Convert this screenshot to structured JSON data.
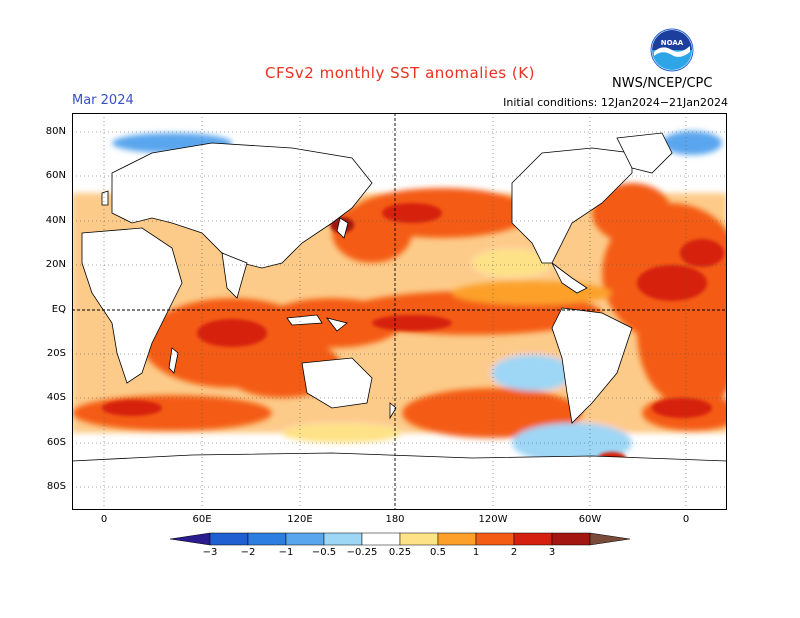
{
  "title": "CFSv2 monthly SST anomalies (K)",
  "month": "Mar 2024",
  "initial_conditions": "Initial conditions: 12Jan2024−21Jan2024",
  "agency": "NWS/NCEP/CPC",
  "logo_text": "NOAA",
  "lat_labels": [
    "80N",
    "60N",
    "40N",
    "20N",
    "EQ",
    "20S",
    "40S",
    "60S",
    "80S"
  ],
  "lon_labels": [
    "0",
    "60E",
    "120E",
    "180",
    "120W",
    "60W",
    "0"
  ],
  "colorbar": {
    "tick_labels": [
      "−3",
      "−2",
      "−1",
      "−0.5",
      "−0.25",
      "0.25",
      "0.5",
      "1",
      "2",
      "3"
    ],
    "colors": [
      "#2a1c8f",
      "#1f5fd1",
      "#2c7fe0",
      "#5aa6ee",
      "#9ed6f5",
      "#ffffff",
      "#fee287",
      "#fca02a",
      "#f45c14",
      "#d6200f",
      "#a31510",
      "#7a4a3a"
    ]
  }
}
